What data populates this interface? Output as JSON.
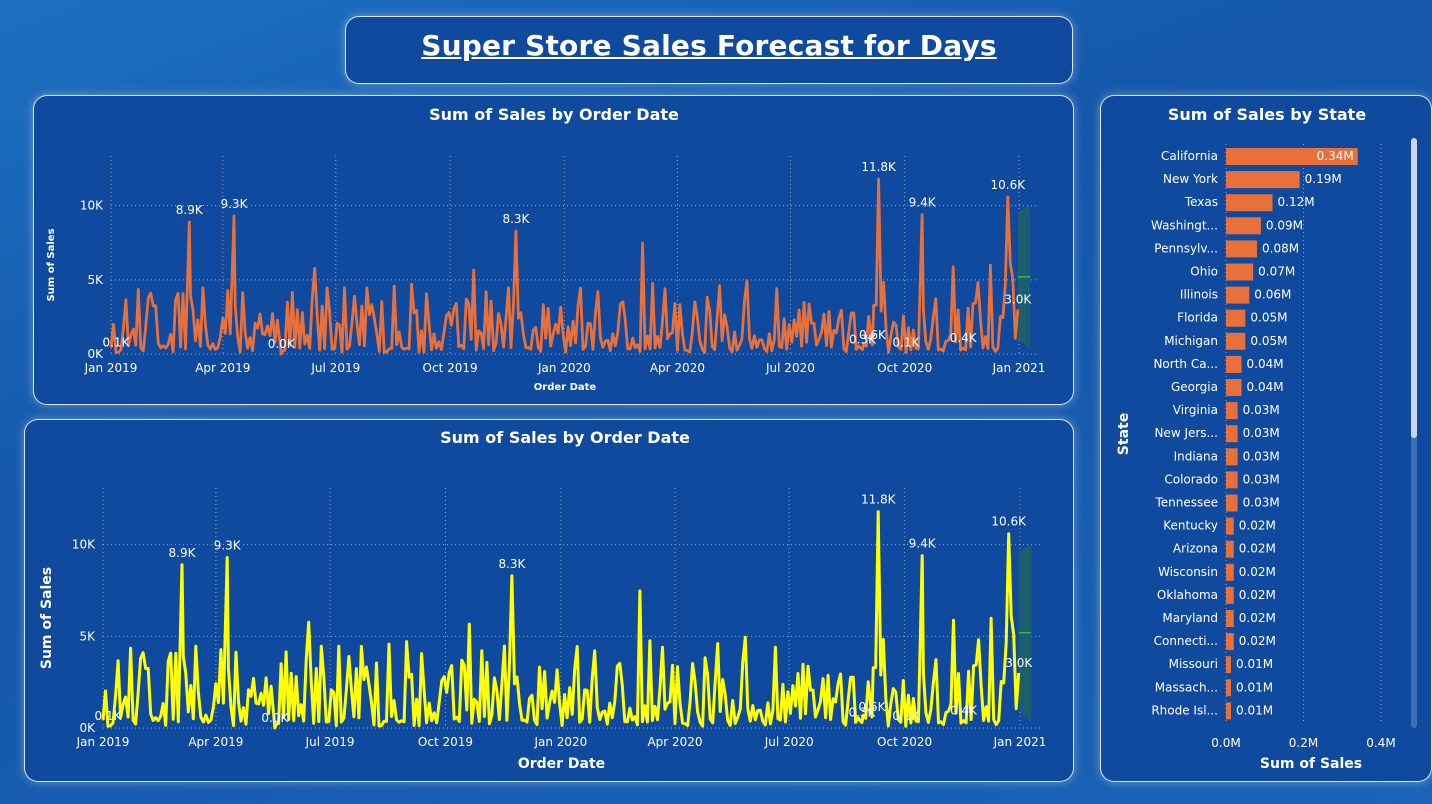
{
  "page_title": "Super Store Sales Forecast for  Days",
  "colors": {
    "orange": "#e8703a",
    "yellow": "#ffff00",
    "forecast_band": "#1d5f6b",
    "forecast_line": "#3fb24a",
    "grid": "#8aa4cc"
  },
  "chart_data": [
    {
      "type": "line",
      "title": "Sum of Sales by Order Date",
      "xlabel": "Order Date",
      "ylabel": "Sum of Sales",
      "x_range": [
        "2019-01-01",
        "2021-01-01"
      ],
      "ylim": [
        0,
        12000
      ],
      "yticks": [
        "0K",
        "5K",
        "10K"
      ],
      "xticks": [
        "Jan 2019",
        "Apr 2019",
        "Jul 2019",
        "Oct 2019",
        "Jan 2020",
        "Apr 2020",
        "Jul 2020",
        "Oct 2020",
        "Jan 2021"
      ],
      "line_color": "orange",
      "grid": true,
      "annotations": [
        {
          "date": "2019-01-05",
          "value": 100,
          "label": "0.1K"
        },
        {
          "date": "2019-03-05",
          "value": 8900,
          "label": "8.9K"
        },
        {
          "date": "2019-04-10",
          "value": 9300,
          "label": "9.3K"
        },
        {
          "date": "2019-05-18",
          "value": 0,
          "label": "0.0K"
        },
        {
          "date": "2019-11-23",
          "value": 8300,
          "label": "8.3K"
        },
        {
          "date": "2020-08-28",
          "value": 300,
          "label": "0.3K"
        },
        {
          "date": "2020-09-05",
          "value": 600,
          "label": "0.6K"
        },
        {
          "date": "2020-09-10",
          "value": 11800,
          "label": "11.8K"
        },
        {
          "date": "2020-10-02",
          "value": 100,
          "label": "0.1K"
        },
        {
          "date": "2020-10-15",
          "value": 9400,
          "label": "9.4K"
        },
        {
          "date": "2020-11-17",
          "value": 400,
          "label": "0.4K"
        },
        {
          "date": "2020-12-23",
          "value": 10600,
          "label": "10.6K"
        },
        {
          "date": "2020-12-31",
          "value": 3000,
          "label": "3.0K"
        }
      ],
      "forecast": {
        "start": "2020-12-31",
        "end": "2021-01-10",
        "value": 5200,
        "upper": [
          9600,
          10000
        ],
        "lower": [
          1000,
          300
        ]
      }
    },
    {
      "type": "line",
      "title": "Sum of Sales by Order Date",
      "xlabel": "Order Date",
      "ylabel": "Sum of Sales",
      "x_range": [
        "2019-01-01",
        "2021-01-01"
      ],
      "ylim": [
        0,
        12000
      ],
      "yticks": [
        "0K",
        "5K",
        "10K"
      ],
      "xticks": [
        "Jan 2019",
        "Apr 2019",
        "Jul 2019",
        "Oct 2019",
        "Jan 2020",
        "Apr 2020",
        "Jul 2020",
        "Oct 2020",
        "Jan 2021"
      ],
      "line_color": "yellow",
      "grid": true,
      "annotations": [
        {
          "date": "2019-01-05",
          "value": 100,
          "label": "0.1K"
        },
        {
          "date": "2019-03-05",
          "value": 8900,
          "label": "8.9K"
        },
        {
          "date": "2019-04-10",
          "value": 9300,
          "label": "9.3K"
        },
        {
          "date": "2019-05-18",
          "value": 0,
          "label": "0.0K"
        },
        {
          "date": "2019-11-23",
          "value": 8300,
          "label": "8.3K"
        },
        {
          "date": "2020-08-28",
          "value": 300,
          "label": "0.3K"
        },
        {
          "date": "2020-09-05",
          "value": 600,
          "label": "0.6K"
        },
        {
          "date": "2020-09-10",
          "value": 11800,
          "label": "11.8K"
        },
        {
          "date": "2020-10-02",
          "value": 100,
          "label": "0.1K"
        },
        {
          "date": "2020-10-15",
          "value": 9400,
          "label": "9.4K"
        },
        {
          "date": "2020-11-17",
          "value": 400,
          "label": "0.4K"
        },
        {
          "date": "2020-12-23",
          "value": 10600,
          "label": "10.6K"
        },
        {
          "date": "2020-12-31",
          "value": 3000,
          "label": "3.0K"
        }
      ],
      "forecast": {
        "start": "2020-12-31",
        "end": "2021-01-10",
        "value": 5200,
        "upper": [
          9600,
          10000
        ],
        "lower": [
          1000,
          300
        ]
      }
    },
    {
      "type": "bar",
      "orientation": "horizontal",
      "title": "Sum of Sales by State",
      "xlabel": "Sum of Sales",
      "ylabel": "State",
      "xlim": [
        0,
        0.45
      ],
      "xticks": [
        "0.0M",
        "0.2M",
        "0.4M"
      ],
      "xtick_values": [
        0,
        0.2,
        0.4
      ],
      "bar_color": "orange",
      "categories": [
        "California",
        "New York",
        "Texas",
        "Washingt...",
        "Pennsylv...",
        "Ohio",
        "Illinois",
        "Florida",
        "Michigan",
        "North Ca...",
        "Georgia",
        "Virginia",
        "New Jers...",
        "Indiana",
        "Colorado",
        "Tennessee",
        "Kentucky",
        "Arizona",
        "Wisconsin",
        "Oklahoma",
        "Maryland",
        "Connecti...",
        "Missouri",
        "Massach...",
        "Rhode Isl..."
      ],
      "values": [
        0.34,
        0.19,
        0.12,
        0.09,
        0.08,
        0.07,
        0.06,
        0.05,
        0.05,
        0.04,
        0.04,
        0.03,
        0.03,
        0.03,
        0.03,
        0.03,
        0.02,
        0.02,
        0.02,
        0.02,
        0.02,
        0.02,
        0.01,
        0.01,
        0.01
      ],
      "value_labels": [
        "0.34M",
        "0.19M",
        "0.12M",
        "0.09M",
        "0.08M",
        "0.07M",
        "0.06M",
        "0.05M",
        "0.05M",
        "0.04M",
        "0.04M",
        "0.03M",
        "0.03M",
        "0.03M",
        "0.03M",
        "0.03M",
        "0.02M",
        "0.02M",
        "0.02M",
        "0.02M",
        "0.02M",
        "0.02M",
        "0.01M",
        "0.01M",
        "0.01M"
      ]
    }
  ]
}
